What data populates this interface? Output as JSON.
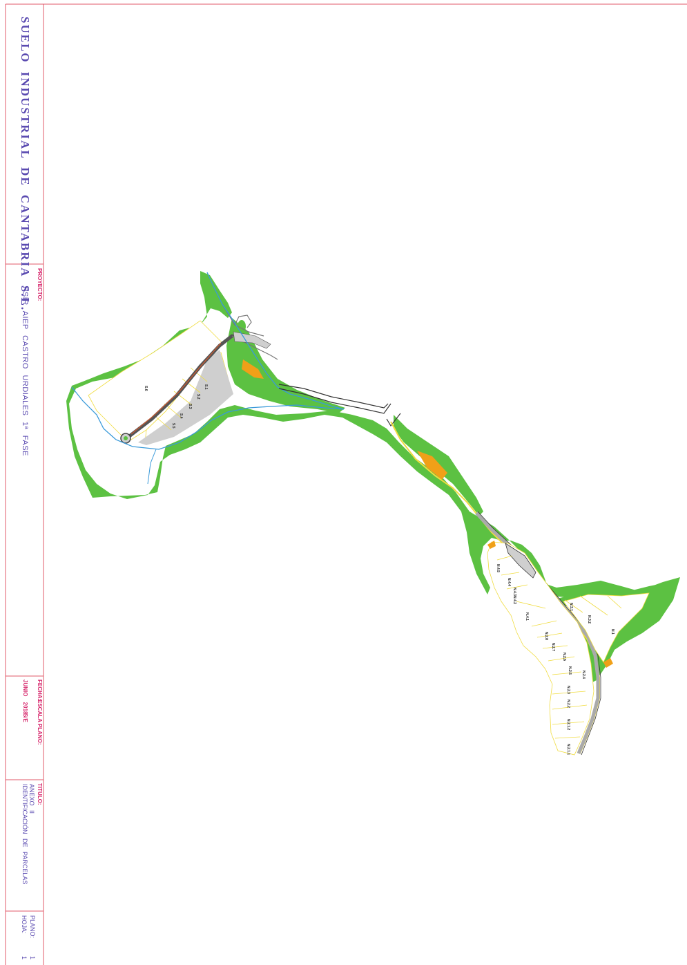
{
  "title_block": {
    "company": "SUELO INDUSTRIAL DE CANTABRIA S.L.",
    "proyecto_label": "PROYECTO:",
    "proyecto_value": "PSIR AIEP CASTRO URDIALES 1ª FASE",
    "fecha_label": "FECHA:",
    "fecha_value": "JUNIO 2018",
    "escala_label": "ESCALA PLANO:",
    "escala_value": "S/E",
    "titulo_label": "TITULO:",
    "titulo_line1": "ANEXO II",
    "titulo_line2": "IDENTIFICACIÓN DE PARCELAS",
    "plano_label": "PLANO:",
    "plano_value": "1",
    "hoja_label": "HOJA:",
    "hoja_value": "1"
  },
  "colors": {
    "frame": "#e05a6a",
    "vegetation": "#5cc142",
    "river": "#3a9ad9",
    "road_dark": "#333333",
    "road_fill": "#c8c8c8",
    "parcel_line": "#f0dc40",
    "public_plot": "#f0a018",
    "text_blue": "#5a4ab0",
    "text_pink": "#d6246a"
  },
  "map": {
    "south_parcels": [
      "S.1",
      "S.2",
      "S.3",
      "S.4",
      "S.5",
      "S.6"
    ],
    "north_parcels": [
      "N.1",
      "N.2.1.1",
      "N.2.1.2",
      "N.2.2",
      "N.2.3",
      "N.2.4",
      "N.2.5",
      "N.2.6",
      "N.2.7",
      "N.2.8",
      "N.3.1",
      "N.3.2",
      "N.4.1",
      "N.4.2",
      "N.4.3",
      "N.4.4",
      "N.4.5"
    ]
  }
}
